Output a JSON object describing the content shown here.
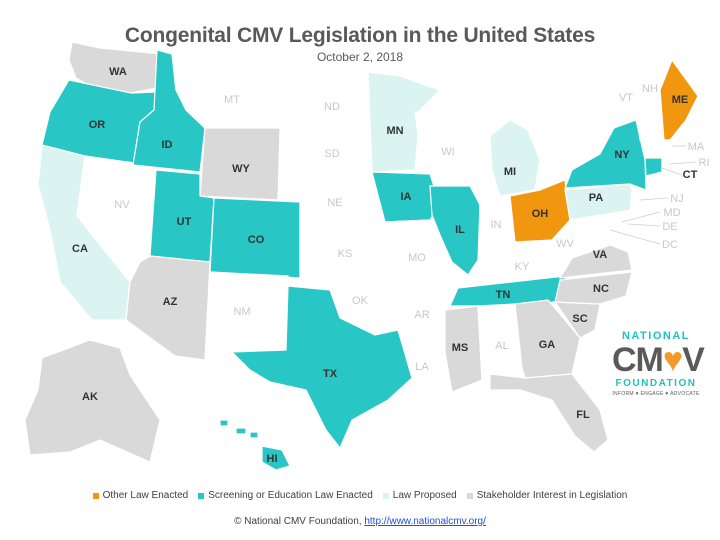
{
  "title": "Congenital CMV Legislation in the United States",
  "date": "October 2, 2018",
  "colors": {
    "other_law": "#f0970f",
    "screening": "#29c6c6",
    "proposed": "#dbf4f2",
    "stakeholder": "#d9d9d9",
    "none": "#ffffff"
  },
  "legend": [
    {
      "label": "Other Law Enacted",
      "color": "#f0970f"
    },
    {
      "label": "Screening or Education Law Enacted",
      "color": "#29c6c6"
    },
    {
      "label": "Law Proposed",
      "color": "#dbf4f2"
    },
    {
      "label": "Stakeholder Interest in Legislation",
      "color": "#d9d9d9"
    }
  ],
  "states": {
    "WA": {
      "label": "WA",
      "status": "stakeholder"
    },
    "OR": {
      "label": "OR",
      "status": "screening"
    },
    "CA": {
      "label": "CA",
      "status": "proposed"
    },
    "NV": {
      "label": "NV",
      "status": "none"
    },
    "ID": {
      "label": "ID",
      "status": "screening"
    },
    "MT": {
      "label": "MT",
      "status": "none"
    },
    "WY": {
      "label": "WY",
      "status": "stakeholder"
    },
    "UT": {
      "label": "UT",
      "status": "screening"
    },
    "CO": {
      "label": "CO",
      "status": "screening"
    },
    "AZ": {
      "label": "AZ",
      "status": "stakeholder"
    },
    "NM": {
      "label": "NM",
      "status": "none"
    },
    "ND": {
      "label": "ND",
      "status": "none"
    },
    "SD": {
      "label": "SD",
      "status": "none"
    },
    "NE": {
      "label": "NE",
      "status": "none"
    },
    "KS": {
      "label": "KS",
      "status": "none"
    },
    "OK": {
      "label": "OK",
      "status": "none"
    },
    "TX": {
      "label": "TX",
      "status": "screening"
    },
    "MN": {
      "label": "MN",
      "status": "proposed"
    },
    "IA": {
      "label": "IA",
      "status": "screening"
    },
    "MO": {
      "label": "MO",
      "status": "none"
    },
    "AR": {
      "label": "AR",
      "status": "none"
    },
    "LA": {
      "label": "LA",
      "status": "none"
    },
    "WI": {
      "label": "WI",
      "status": "none"
    },
    "IL": {
      "label": "IL",
      "status": "screening"
    },
    "MI": {
      "label": "MI",
      "status": "proposed"
    },
    "IN": {
      "label": "IN",
      "status": "none"
    },
    "OH": {
      "label": "OH",
      "status": "other_law"
    },
    "KY": {
      "label": "KY",
      "status": "none"
    },
    "TN": {
      "label": "TN",
      "status": "screening"
    },
    "MS": {
      "label": "MS",
      "status": "stakeholder"
    },
    "AL": {
      "label": "AL",
      "status": "none"
    },
    "GA": {
      "label": "GA",
      "status": "stakeholder"
    },
    "FL": {
      "label": "FL",
      "status": "stakeholder"
    },
    "SC": {
      "label": "SC",
      "status": "stakeholder"
    },
    "NC": {
      "label": "NC",
      "status": "stakeholder"
    },
    "VA": {
      "label": "VA",
      "status": "stakeholder"
    },
    "WV": {
      "label": "WV",
      "status": "none"
    },
    "PA": {
      "label": "PA",
      "status": "proposed"
    },
    "NY": {
      "label": "NY",
      "status": "screening"
    },
    "VT": {
      "label": "VT",
      "status": "none"
    },
    "NH": {
      "label": "NH",
      "status": "none"
    },
    "ME": {
      "label": "ME",
      "status": "other_law"
    },
    "MA": {
      "label": "MA",
      "status": "none"
    },
    "RI": {
      "label": "RI",
      "status": "none"
    },
    "CT": {
      "label": "CT",
      "status": "screening"
    },
    "NJ": {
      "label": "NJ",
      "status": "none"
    },
    "DE": {
      "label": "DE",
      "status": "none"
    },
    "MD": {
      "label": "MD",
      "status": "none"
    },
    "DC": {
      "label": "DC",
      "status": "none"
    },
    "AK": {
      "label": "AK",
      "status": "stakeholder"
    },
    "HI": {
      "label": "HI",
      "status": "screening"
    }
  },
  "logo": {
    "top": "NATIONAL",
    "main_left": "CM",
    "main_heart": "♥",
    "main_right": "V",
    "bottom": "FOUNDATION",
    "tagline": "INFORM ♥ ENGAGE ♥ ADVOCATE"
  },
  "footer": {
    "text": "© National CMV Foundation, ",
    "link": "http://www.nationalcmv.org/"
  }
}
